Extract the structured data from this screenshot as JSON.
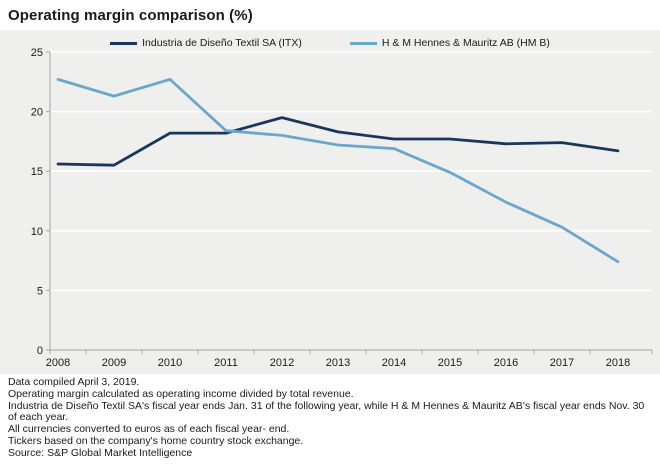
{
  "header": {
    "title": "Operating margin comparison (%)"
  },
  "chart_data": {
    "type": "line",
    "x": [
      2008,
      2009,
      2010,
      2011,
      2012,
      2013,
      2014,
      2015,
      2016,
      2017,
      2018
    ],
    "series": [
      {
        "name": "Industria de Diseño Textil SA (ITX)",
        "color": "#1b365d",
        "values": [
          15.6,
          15.5,
          18.2,
          18.2,
          19.5,
          18.3,
          17.7,
          17.7,
          17.3,
          17.4,
          16.7
        ]
      },
      {
        "name": "H & M Hennes & Mauritz AB (HM B)",
        "color": "#6ba7cb",
        "values": [
          22.7,
          21.3,
          22.7,
          18.4,
          18.0,
          17.2,
          16.9,
          14.9,
          12.4,
          10.3,
          7.4
        ]
      }
    ],
    "title": "Operating margin comparison (%)",
    "xlabel": "",
    "ylabel": "",
    "ylim": [
      0,
      25
    ],
    "yticks": [
      0,
      5,
      10,
      15,
      20,
      25
    ],
    "grid": "horizontal white gridlines on gray panel",
    "legend_position": "top-center"
  },
  "colors": {
    "panel_background": "#efefee",
    "page_background": "#ffffff",
    "gridline": "#ffffff",
    "axis": "#a6a6a6",
    "text": "#1a1a1a",
    "series_itx": "#1b365d",
    "series_hm": "#6ba7cb"
  },
  "footer": {
    "lines": [
      "Data compiled April 3, 2019.",
      "Operating margin calculated as operating income divided by total revenue.",
      "Industria de Diseño Textil SA's fiscal year ends Jan. 31 of the following year, while H & M Hennes & Mauritz AB's fiscal year ends Nov. 30 of each year.",
      "All currencies converted to euros as of each fiscal year- end.",
      "Tickers based on the company's home country stock exchange.",
      "Source: S&P Global Market Intelligence"
    ]
  }
}
